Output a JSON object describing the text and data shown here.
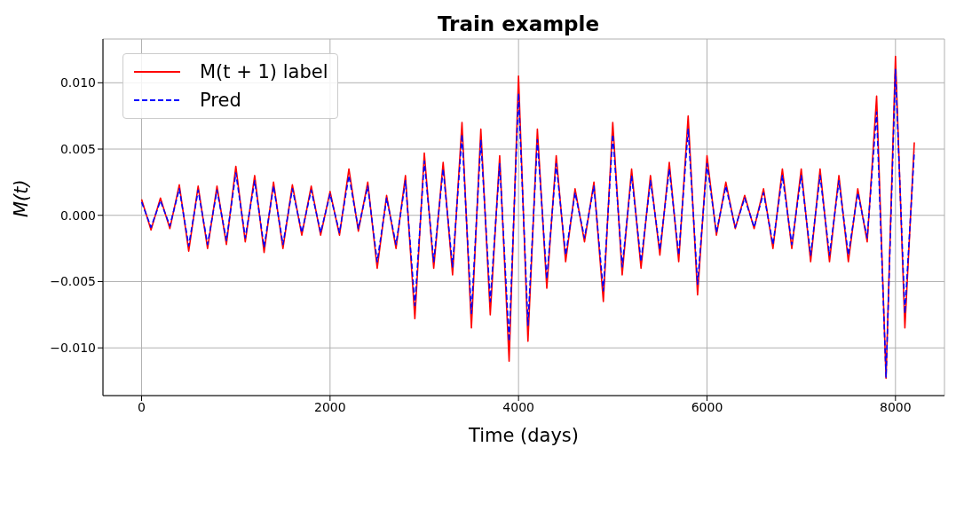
{
  "chart_data": {
    "type": "line",
    "title": "Train example",
    "xlabel": "Time (days)",
    "ylabel": "M(t)",
    "x": [
      0,
      100,
      200,
      300,
      400,
      500,
      600,
      700,
      800,
      900,
      1000,
      1100,
      1200,
      1300,
      1400,
      1500,
      1600,
      1700,
      1800,
      1900,
      2000,
      2100,
      2200,
      2300,
      2400,
      2500,
      2600,
      2700,
      2800,
      2900,
      3000,
      3100,
      3200,
      3300,
      3400,
      3500,
      3600,
      3700,
      3800,
      3900,
      4000,
      4100,
      4200,
      4300,
      4400,
      4500,
      4600,
      4700,
      4800,
      4900,
      5000,
      5100,
      5200,
      5300,
      5400,
      5500,
      5600,
      5700,
      5800,
      5900,
      6000,
      6100,
      6200,
      6300,
      6400,
      6500,
      6600,
      6700,
      6800,
      6900,
      7000,
      7100,
      7200,
      7300,
      7400,
      7500,
      7600,
      7700,
      7800,
      7900,
      8000,
      8100,
      8200
    ],
    "series": [
      {
        "name": "M(t + 1) label",
        "color": "#ff0000",
        "line_style": "solid",
        "values": [
          0.0012,
          -0.0011,
          0.0013,
          -0.001,
          0.0023,
          -0.0027,
          0.0022,
          -0.0025,
          0.0022,
          -0.0022,
          0.0037,
          -0.002,
          0.003,
          -0.0028,
          0.0025,
          -0.0025,
          0.0023,
          -0.0015,
          0.0022,
          -0.0015,
          0.0018,
          -0.0015,
          0.0035,
          -0.0012,
          0.0025,
          -0.004,
          0.0015,
          -0.0025,
          0.003,
          -0.0078,
          0.0047,
          -0.004,
          0.004,
          -0.0045,
          0.007,
          -0.0085,
          0.0065,
          -0.0075,
          0.0045,
          -0.011,
          0.0105,
          -0.0095,
          0.0065,
          -0.0055,
          0.0045,
          -0.0035,
          0.002,
          -0.002,
          0.0025,
          -0.0065,
          0.007,
          -0.0045,
          0.0035,
          -0.004,
          0.003,
          -0.003,
          0.004,
          -0.0035,
          0.0075,
          -0.006,
          0.0045,
          -0.0015,
          0.0025,
          -0.001,
          0.0015,
          -0.001,
          0.002,
          -0.0025,
          0.0035,
          -0.0025,
          0.0035,
          -0.0035,
          0.0035,
          -0.0035,
          0.003,
          -0.0035,
          0.002,
          -0.002,
          0.009,
          -0.0123,
          0.012,
          -0.0085,
          0.0055
        ]
      },
      {
        "name": "Pred",
        "color": "#0000ff",
        "line_style": "dashed",
        "values": [
          0.001,
          -0.0009,
          0.0011,
          -0.0008,
          0.002,
          -0.0023,
          0.0019,
          -0.0022,
          0.0019,
          -0.0019,
          0.0032,
          -0.0017,
          0.0026,
          -0.0024,
          0.0022,
          -0.0022,
          0.002,
          -0.0013,
          0.0019,
          -0.0013,
          0.0016,
          -0.0013,
          0.003,
          -0.001,
          0.0022,
          -0.0035,
          0.0013,
          -0.0022,
          0.0026,
          -0.0068,
          0.0041,
          -0.0035,
          0.0035,
          -0.0039,
          0.0061,
          -0.0074,
          0.0057,
          -0.0065,
          0.0039,
          -0.0095,
          0.0092,
          -0.0083,
          0.0057,
          -0.0048,
          0.0039,
          -0.003,
          0.0017,
          -0.0017,
          0.0022,
          -0.0057,
          0.0061,
          -0.0039,
          0.003,
          -0.0035,
          0.0026,
          -0.0026,
          0.0035,
          -0.003,
          0.0065,
          -0.0052,
          0.0039,
          -0.0013,
          0.0022,
          -0.0009,
          0.0013,
          -0.0009,
          0.0017,
          -0.0022,
          0.003,
          -0.0022,
          0.003,
          -0.003,
          0.003,
          -0.003,
          0.0026,
          -0.003,
          0.0017,
          -0.0017,
          0.0078,
          -0.0122,
          0.011,
          -0.0074,
          0.0048
        ]
      }
    ],
    "xlim": [
      -410,
      8520
    ],
    "xticks": [
      0,
      2000,
      4000,
      6000,
      8000
    ],
    "ylim": [
      -0.0136,
      0.0133
    ],
    "yticks": [
      {
        "value": -0.01,
        "label": "−0.010"
      },
      {
        "value": -0.005,
        "label": "−0.005"
      },
      {
        "value": 0,
        "label": "0.000"
      },
      {
        "value": 0.005,
        "label": "0.005"
      },
      {
        "value": 0.01,
        "label": "0.010"
      }
    ],
    "grid": true,
    "legend": "top left"
  }
}
